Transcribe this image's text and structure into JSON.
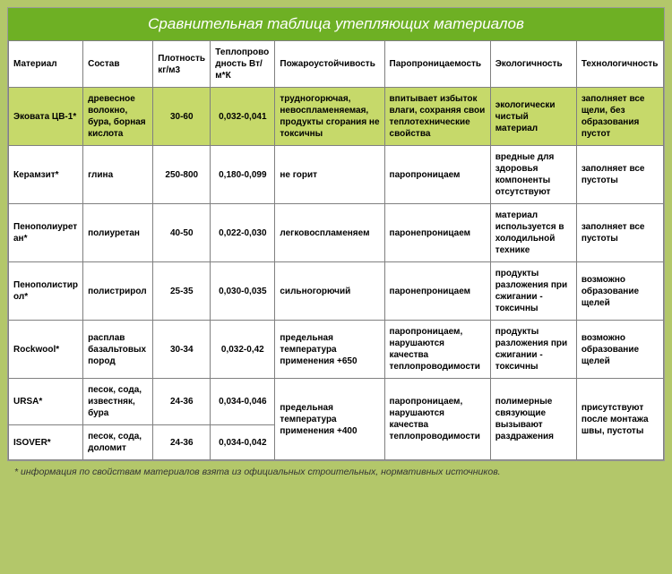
{
  "title": "Сравнительная таблица утепляющих материалов",
  "footnote": "* информация по свойствам материалов взята из официальных строительных, нормативных источников.",
  "colors": {
    "page_bg": "#b3c76a",
    "title_bg": "#6eb024",
    "title_fg": "#ffffff",
    "highlight_bg": "#c6d96a",
    "border": "#808080",
    "cell_bg": "#ffffff"
  },
  "columns": [
    "Материал",
    "Состав",
    "Плотность кг/м3",
    "Теплопрово дность Вт/м*К",
    "Пожароустойчивость",
    "Паропроницаемость",
    "Экологичность",
    "Технологичность"
  ],
  "rows": [
    {
      "highlight": true,
      "cells": [
        "Эковата ЦВ-1*",
        "древесное волокно, бура, борная кислота",
        "30-60",
        "0,032-0,041",
        "трудногорючая, невоспламеняемая, продукты сгорания не токсичны",
        "впитывает избыток влаги, сохраняя свои теплотехнические свойства",
        "экологически чистый материал",
        "заполняет все щели, без образования пустот"
      ]
    },
    {
      "cells": [
        "Керамзит*",
        "глина",
        "250-800",
        "0,180-0,099",
        "не горит",
        "паропроницаем",
        "вредные для здоровья компоненты отсутствуют",
        "заполняет все пустоты"
      ]
    },
    {
      "cells": [
        "Пенополиуретан*",
        "полиуретан",
        "40-50",
        "0,022-0,030",
        "легковоспламеняем",
        "паронепроницаем",
        "материал используется в холодильной технике",
        "заполняет все пустоты"
      ]
    },
    {
      "cells": [
        "Пенополистирол*",
        "полистрирол",
        "25-35",
        "0,030-0,035",
        "сильногорючий",
        "паронепроницаем",
        "продукты разложения при сжигании - токсичны",
        "возможно образование щелей"
      ]
    },
    {
      "cells": [
        "Rockwool*",
        "расплав базальтовых пород",
        "30-34",
        "0,032-0,42",
        "предельная температура применения +650",
        "паропроницаем, нарушаются качества теплопроводимости",
        "продукты разложения при сжигании - токсичны",
        "возможно образование щелей"
      ]
    },
    {
      "merged_group": true,
      "r1": [
        "URSA*",
        "песок, сода, известняк, бура",
        "24-36",
        "0,034-0,046"
      ],
      "r2": [
        "ISOVER*",
        "песок, сода, доломит",
        "24-36",
        "0,034-0,042"
      ],
      "shared": [
        "предельная температура применения +400",
        "паропроницаем, нарушаются качества теплопроводимости",
        "полимерные связующие вызывают раздражения",
        "присутствуют после монтажа швы, пустоты"
      ]
    }
  ],
  "fonts": {
    "title_size": 17,
    "cell_size": 10,
    "footnote_size": 10.5
  }
}
